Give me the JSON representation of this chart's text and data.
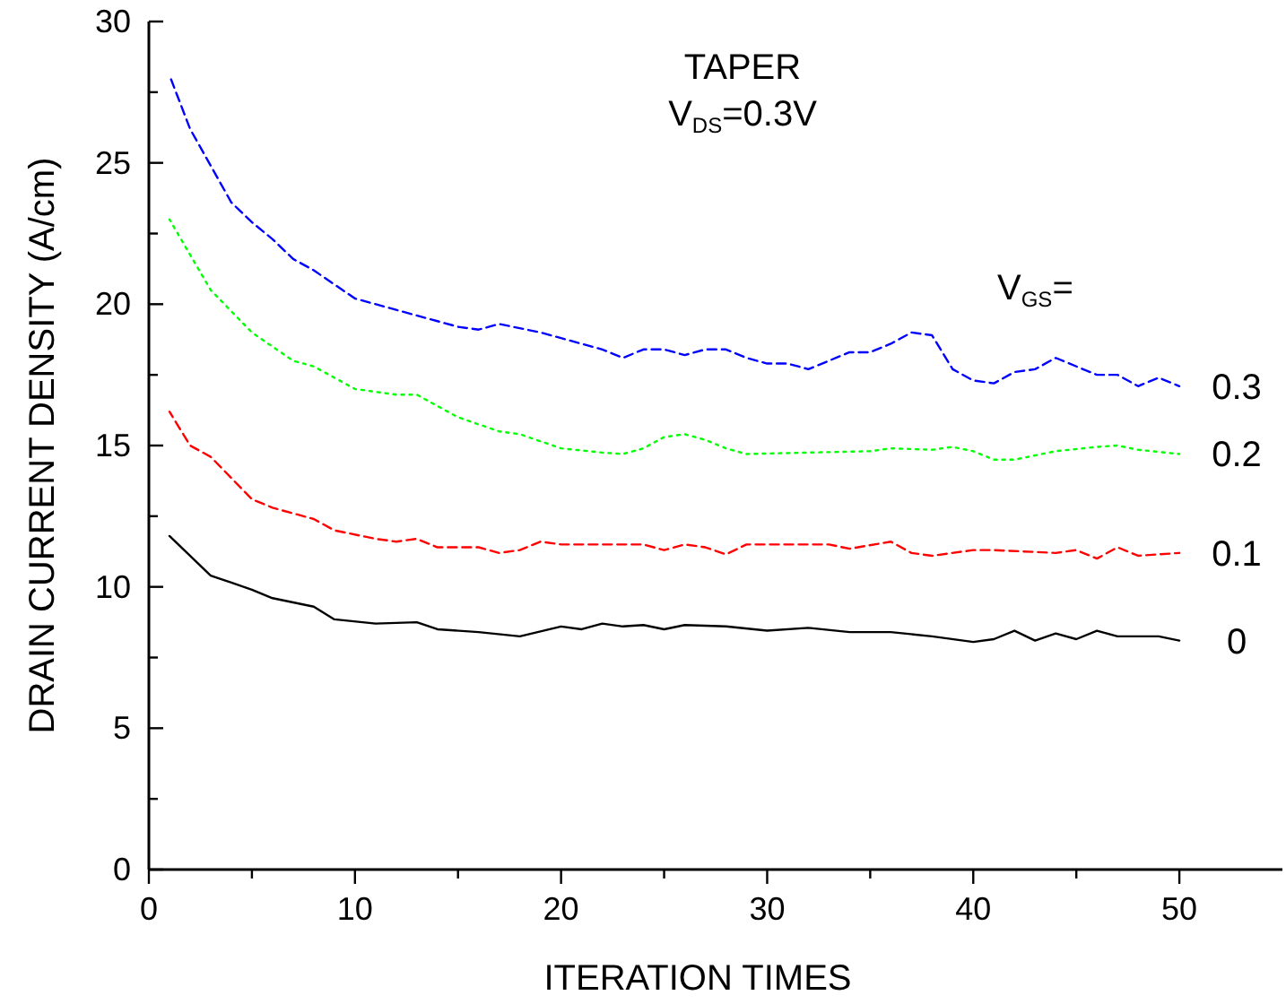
{
  "chart_data": {
    "type": "line",
    "xlabel": "ITERATION TIMES",
    "ylabel": "DRAIN CURRENT DENSITY (A/cm)",
    "legend_title": "V$_{GS}$=",
    "annotations": [
      "TAPER",
      "V$_{DS}$=0.3V"
    ],
    "xlim": [
      0,
      55
    ],
    "xticks": [
      0,
      {
        "value": 5,
        "label": null
      },
      10,
      {
        "value": 15,
        "label": null
      },
      20,
      {
        "value": 25,
        "label": null
      },
      30,
      {
        "value": 35,
        "label": null
      },
      40,
      {
        "value": 45,
        "label": null
      },
      50
    ],
    "ylim": [
      0,
      30
    ],
    "yticks": [
      0,
      {
        "value": 2.5,
        "label": null
      },
      5,
      {
        "value": 7.5,
        "label": null
      },
      10,
      {
        "value": 12.5,
        "label": null
      },
      15,
      {
        "value": 17.5,
        "label": null
      },
      20,
      {
        "value": 22.5,
        "label": null
      },
      25,
      {
        "value": 27.5,
        "label": null
      },
      30
    ],
    "grid": false,
    "series": [
      {
        "name": "0.3",
        "color": "#0000ff",
        "line_style": "dashed",
        "x": [
          1,
          2,
          3,
          4,
          5,
          6,
          7,
          8,
          9,
          10,
          12,
          14,
          15,
          16,
          17,
          19,
          20,
          22,
          23,
          24,
          25,
          26,
          27,
          28,
          29,
          30,
          31,
          32,
          34,
          35,
          36,
          37,
          38,
          39,
          40,
          41,
          42,
          43,
          44,
          46,
          47,
          48,
          49,
          50
        ],
        "values": [
          28.1,
          26.2,
          24.9,
          23.6,
          22.9,
          22.3,
          21.6,
          21.2,
          20.7,
          20.2,
          19.8,
          19.4,
          19.2,
          19.1,
          19.3,
          19.0,
          18.8,
          18.4,
          18.1,
          18.4,
          18.4,
          18.2,
          18.4,
          18.4,
          18.1,
          17.9,
          17.9,
          17.7,
          18.3,
          18.3,
          18.6,
          19.0,
          18.9,
          17.7,
          17.3,
          17.2,
          17.6,
          17.7,
          18.1,
          17.5,
          17.5,
          17.1,
          17.4,
          17.1
        ]
      },
      {
        "name": "0.2",
        "color": "#00ff00",
        "line_style": "dotted",
        "x": [
          1,
          3,
          5,
          7,
          8,
          10,
          12,
          13,
          15,
          17,
          18,
          20,
          22,
          23,
          24,
          25,
          26,
          27,
          28,
          29,
          32,
          35,
          36,
          38,
          39,
          40,
          41,
          42,
          44,
          46,
          47,
          48,
          50
        ],
        "values": [
          23.0,
          20.5,
          19.0,
          18.0,
          17.8,
          17.0,
          16.8,
          16.8,
          16.0,
          15.5,
          15.4,
          14.9,
          14.75,
          14.7,
          14.9,
          15.3,
          15.4,
          15.2,
          14.9,
          14.7,
          14.75,
          14.8,
          14.9,
          14.85,
          14.95,
          14.8,
          14.5,
          14.5,
          14.8,
          14.95,
          15.0,
          14.85,
          14.7
        ]
      },
      {
        "name": "0.1",
        "color": "#ff0000",
        "line_style": "dashed",
        "x": [
          1,
          2,
          3,
          5,
          6,
          8,
          9,
          11,
          12,
          13,
          14,
          16,
          17,
          18,
          19,
          20,
          23,
          24,
          25,
          26,
          27,
          28,
          29,
          33,
          34,
          36,
          37,
          38,
          40,
          41,
          44,
          45,
          46,
          47,
          48,
          50
        ],
        "values": [
          16.2,
          15.0,
          14.6,
          13.1,
          12.8,
          12.4,
          12.0,
          11.7,
          11.6,
          11.7,
          11.4,
          11.4,
          11.2,
          11.3,
          11.6,
          11.5,
          11.5,
          11.5,
          11.3,
          11.5,
          11.4,
          11.15,
          11.5,
          11.5,
          11.35,
          11.6,
          11.2,
          11.1,
          11.3,
          11.3,
          11.2,
          11.3,
          11.0,
          11.4,
          11.1,
          11.2
        ]
      },
      {
        "name": "0",
        "color": "#000000",
        "line_style": "solid",
        "x": [
          1,
          3,
          5,
          6,
          8,
          9,
          11,
          13,
          14,
          16,
          18,
          20,
          21,
          22,
          23,
          24,
          25,
          26,
          28,
          30,
          32,
          34,
          36,
          38,
          40,
          41,
          42,
          43,
          44,
          45,
          46,
          47,
          49,
          50
        ],
        "values": [
          11.8,
          10.4,
          9.9,
          9.6,
          9.3,
          8.85,
          8.7,
          8.75,
          8.5,
          8.4,
          8.25,
          8.6,
          8.5,
          8.7,
          8.6,
          8.65,
          8.5,
          8.65,
          8.6,
          8.45,
          8.55,
          8.4,
          8.4,
          8.25,
          8.05,
          8.15,
          8.45,
          8.1,
          8.35,
          8.15,
          8.45,
          8.25,
          8.25,
          8.1
        ]
      }
    ]
  }
}
